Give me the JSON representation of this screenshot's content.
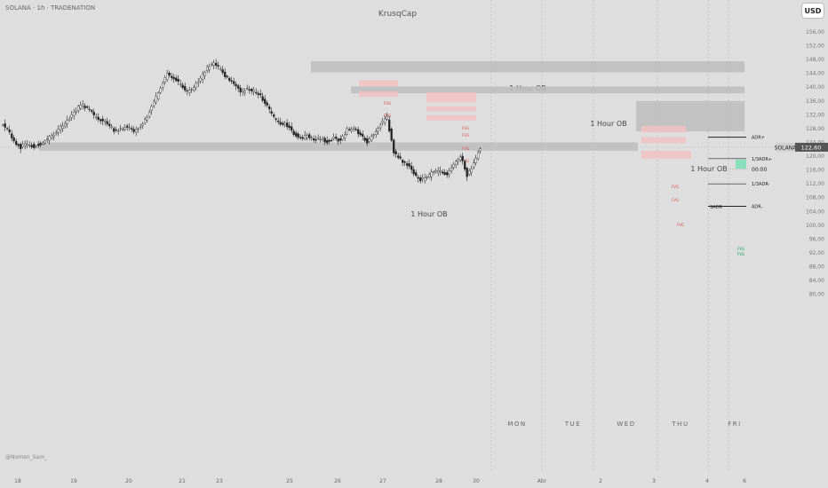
{
  "header": {
    "title": "SOLANA · 1h · TRADENATION",
    "author": "KrusqCap",
    "currency": "USD"
  },
  "watermark": "@Nomen_Sam_",
  "colors": {
    "background": "#dedede",
    "candle": "#222222",
    "ob": "#bdbdbd",
    "fvg_bear": "#f3c1c1",
    "fvg_bear_text": "#e04a4a",
    "fvg_bull": "#7fe0b6",
    "fvg_bull_text": "#0a9a5a",
    "price_tag": "#555555"
  },
  "price_axis": {
    "ticks": [
      "156,00",
      "152,00",
      "148,00",
      "144,00",
      "140,00",
      "136,00",
      "132,00",
      "128,00",
      "124,00",
      "120,00",
      "116,00",
      "112,00",
      "108,00",
      "104,00",
      "100,00",
      "96,00",
      "92,00",
      "88,00",
      "84,00",
      "80,00"
    ],
    "current": "122,60",
    "symbol": "SOLANA"
  },
  "time_axis": {
    "labels": [
      "18",
      "19",
      "20",
      "21",
      "23",
      "25",
      "26",
      "27",
      "28",
      "30",
      "Abr",
      "2",
      "3",
      "4",
      "6"
    ]
  },
  "weekdays": [
    "MON",
    "TUE",
    "WED",
    "THU",
    "FRI"
  ],
  "order_blocks": [
    {
      "label": "1 Hour OB"
    },
    {
      "label": "1 Hour OB"
    },
    {
      "label": "1 Hour OB"
    },
    {
      "label": "1 Hour OB"
    }
  ],
  "fvg_label": "FVG",
  "adr_levels": [
    {
      "label": "ADR+",
      "value": 125.5
    },
    {
      "label": "1/3ADR+",
      "value": 119.3
    },
    {
      "label": "00:00",
      "value": 116.2
    },
    {
      "label": "1/3ADR-",
      "value": 112.0
    },
    {
      "label": "ADR-",
      "value": 105.5
    }
  ],
  "sadr_label": "SADR",
  "chart_data": {
    "type": "candlestick",
    "symbol": "SOLANA",
    "timeframe": "1h",
    "ylim": [
      80,
      158
    ],
    "price_series": [
      129.5,
      128.0,
      124.0,
      122.6,
      123.5,
      122.8,
      123.6,
      125.0,
      126.5,
      128.5,
      130.5,
      132.8,
      135.0,
      134.0,
      131.8,
      130.4,
      129.8,
      127.2,
      128.0,
      128.5,
      127.0,
      128.5,
      131.5,
      135.5,
      140.0,
      144.0,
      142.5,
      141.0,
      138.5,
      140.0,
      142.5,
      145.5,
      147.0,
      145.0,
      142.5,
      141.0,
      138.5,
      139.5,
      139.0,
      137.5,
      134.5,
      131.0,
      129.5,
      129.0,
      126.5,
      125.0,
      126.0,
      124.5,
      125.0,
      124.3,
      125.4,
      124.5,
      127.5,
      128.0,
      126.0,
      124.0,
      126.5,
      129.5,
      131.0,
      121.0,
      119.0,
      117.5,
      115.0,
      113.0,
      114.0,
      115.5,
      115.5,
      114.5,
      117.5,
      120.0,
      114.5,
      118.0,
      122.6
    ]
  }
}
